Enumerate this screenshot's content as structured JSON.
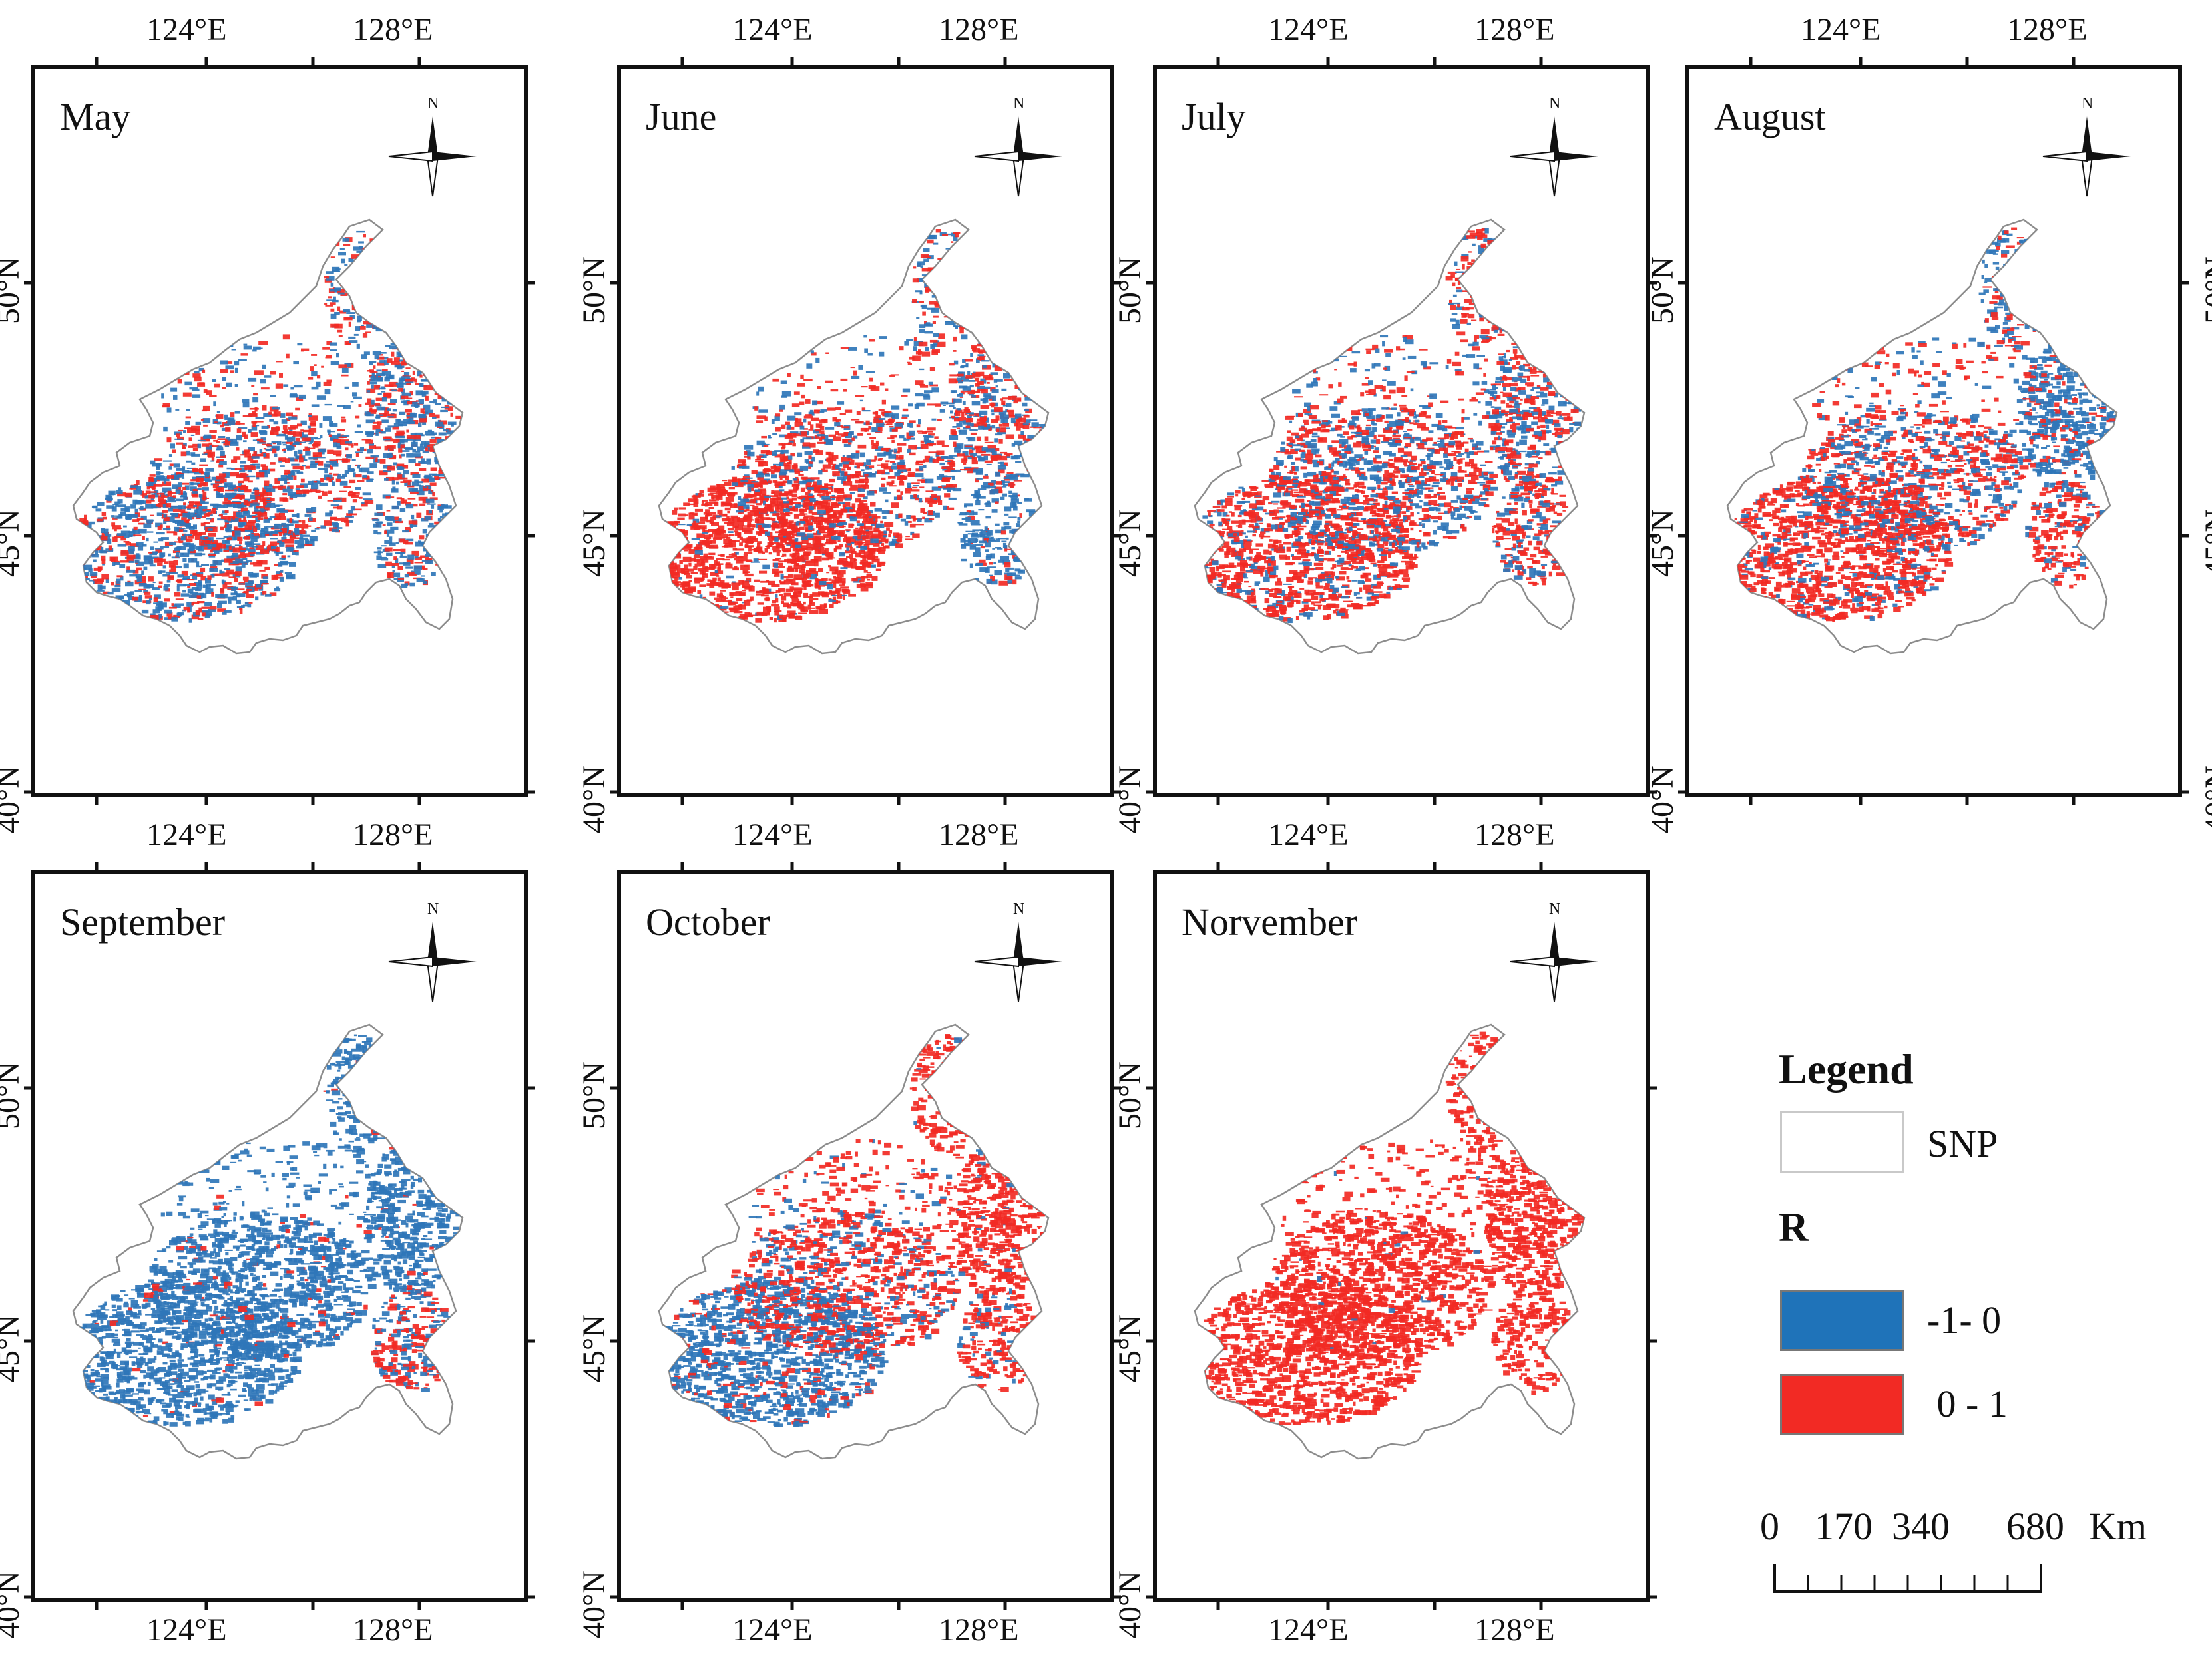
{
  "figure": {
    "panels": [
      {
        "title": "May",
        "pattern": "mixed"
      },
      {
        "title": "June",
        "pattern": "red-sw"
      },
      {
        "title": "July",
        "pattern": "mixed-red"
      },
      {
        "title": "August",
        "pattern": "mixed-red-blue-ne"
      },
      {
        "title": "September",
        "pattern": "blue"
      },
      {
        "title": "October",
        "pattern": "red-blue-sw"
      },
      {
        "title": "Norvember",
        "pattern": "red"
      }
    ],
    "x_ticks_top": [
      "124°E",
      "128°E"
    ],
    "x_ticks_bottom": [
      "124°E",
      "128°E"
    ],
    "y_ticks": [
      "50°N",
      "45°N",
      "40°N"
    ],
    "north_label": "N",
    "colors": {
      "negative": "#2f76b8",
      "positive": "#f22a24",
      "outline": "#8c8c8c",
      "frame": "#111111"
    }
  },
  "legend": {
    "title": "Legend",
    "snp_label": "SNP",
    "r_title": "R",
    "items": [
      {
        "label": "-1- 0",
        "color": "#1f73b9"
      },
      {
        "label": " 0 - 1",
        "color": "#f22a24"
      }
    ],
    "scale": {
      "ticks": [
        "0",
        "170",
        "340",
        "680"
      ],
      "unit": "Km"
    }
  }
}
